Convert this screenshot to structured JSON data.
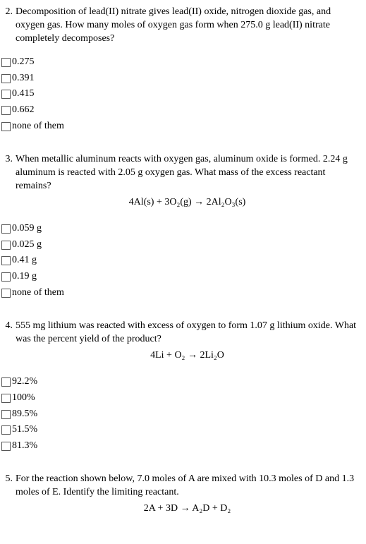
{
  "questions": [
    {
      "number": "2.",
      "text": "Decomposition of lead(II) nitrate gives lead(II) oxide, nitrogen dioxide gas, and oxygen gas. How many moles of oxygen gas form when 275.0 g lead(II) nitrate completely decomposes?",
      "equation": "",
      "options": [
        "0.275",
        "0.391",
        "0.415",
        "0.662",
        "none of them"
      ]
    },
    {
      "number": "3.",
      "text": "When metallic aluminum reacts with oxygen gas, aluminum oxide is formed. 2.24 g aluminum is reacted with 2.05 g oxygen gas. What mass of the excess reactant remains?",
      "equation": "4Al(s) + 3O₂(g) → 2Al₂O₃(s)",
      "options": [
        "0.059 g",
        "0.025 g",
        "0.41 g",
        "0.19 g",
        "none of them"
      ]
    },
    {
      "number": "4.",
      "text": "555 mg lithium was reacted with excess of oxygen to form 1.07 g lithium oxide. What was the percent yield of the product?",
      "equation": "4Li + O₂ → 2Li₂O",
      "options": [
        "92.2%",
        "100%",
        "89.5%",
        "51.5%",
        "81.3%"
      ]
    },
    {
      "number": "5.",
      "text": "For the reaction shown below, 7.0 moles of A are mixed with 10.3 moles of D and 1.3 moles of E. Identify the limiting reactant.",
      "equation": "2A + 3D → A₂D + D₂",
      "options": []
    }
  ]
}
